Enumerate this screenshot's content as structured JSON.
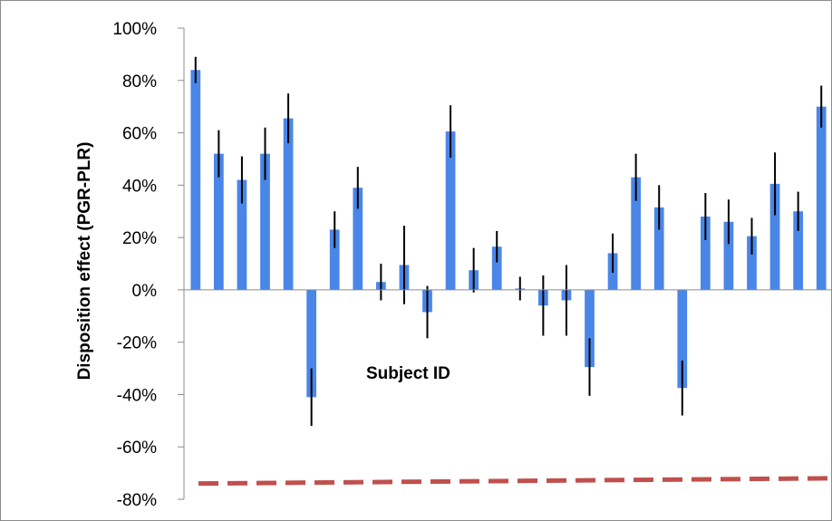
{
  "chart_data": {
    "type": "bar",
    "ylabel": "Disposition effect (PGR-PLR)",
    "annotation": "Subject ID",
    "ylim": [
      -0.8,
      1.0
    ],
    "y_ticks": [
      -0.8,
      -0.6,
      -0.4,
      -0.2,
      0,
      0.2,
      0.4,
      0.6,
      0.8,
      1.0
    ],
    "y_tick_labels": [
      "-80%",
      "-60%",
      "-40%",
      "-20%",
      "0%",
      "20%",
      "40%",
      "60%",
      "80%",
      "100%"
    ],
    "grid": false,
    "legend": "none",
    "series": [
      {
        "values": [
          0.84,
          0.52,
          0.42,
          0.52,
          0.655,
          -0.41,
          0.23,
          0.39,
          0.03,
          0.095,
          -0.085,
          0.605,
          0.075,
          0.165,
          0.005,
          -0.06,
          -0.04,
          -0.295,
          0.14,
          0.43,
          0.315,
          -0.375,
          0.28,
          0.26,
          0.205,
          0.405,
          0.3,
          0.7
        ],
        "error": [
          0.05,
          0.09,
          0.09,
          0.1,
          0.095,
          0.11,
          0.07,
          0.08,
          0.07,
          0.15,
          0.1,
          0.1,
          0.085,
          0.06,
          0.045,
          0.115,
          0.135,
          0.11,
          0.075,
          0.09,
          0.085,
          0.105,
          0.09,
          0.085,
          0.07,
          0.12,
          0.075,
          0.08
        ]
      }
    ],
    "reference_line": {
      "style": "dashed",
      "y_start": -0.74,
      "y_end": -0.72
    },
    "colors": {
      "bar": "#4a86e8",
      "error_bar": "#000000",
      "reference_line": "#c0504d"
    }
  }
}
